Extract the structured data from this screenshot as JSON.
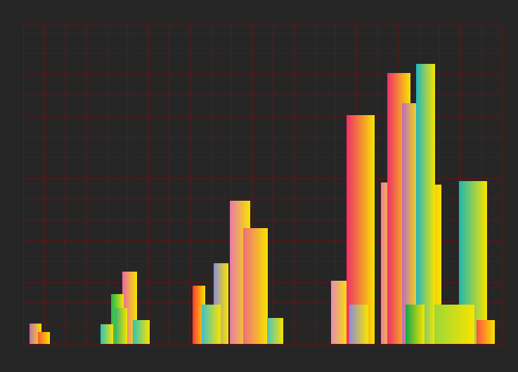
{
  "chart_data": {
    "type": "bar",
    "x": [
      0.57,
      0.98,
      5.1,
      4.5,
      4.7,
      4.0,
      5.65,
      10.4,
      11.15,
      9.5,
      8.45,
      9.0,
      12.1,
      15.2,
      16.2,
      19.6,
      17.5,
      18.05,
      18.6,
      19.3,
      21.6,
      16.1,
      18.8,
      20.7,
      22.2
    ],
    "values": [
      1.0,
      0.57,
      3.5,
      2.4,
      1.75,
      0.95,
      1.15,
      6.9,
      5.6,
      3.9,
      2.8,
      1.9,
      1.25,
      3.05,
      11.05,
      7.7,
      7.8,
      13.05,
      11.6,
      13.5,
      7.85,
      1.9,
      1.9,
      1.9,
      1.15
    ],
    "colors": [
      "#c86fb0",
      "#ff5a2a",
      "#e86aa6",
      "#1db954",
      "#2bb673",
      "#2ec4b6",
      "#2ec4b6",
      "#e87aa8",
      "#f06f7a",
      "#8f8fd6",
      "#ff3b2f",
      "#3fc1c9",
      "#49c5c0",
      "#e88ab5",
      "#f0306a",
      "#ff9a2a",
      "#f07aa0",
      "#f0306a",
      "#c06cc0",
      "#22b8c0",
      "#20b8b0",
      "#8f8fd6",
      "#12a84a",
      "#9ed838",
      "#ff5040"
    ],
    "xlim": [
      0,
      23
    ],
    "ylim": [
      0,
      15.4
    ],
    "xticks": [
      0,
      1,
      2,
      3,
      4,
      5,
      6,
      7,
      8,
      9,
      10,
      11,
      12,
      13,
      14,
      15,
      16,
      17,
      18,
      19,
      20,
      21,
      22,
      23
    ],
    "yticks": [
      0,
      1,
      2,
      3,
      4,
      5,
      6,
      7,
      8,
      9,
      10,
      11,
      12,
      13,
      14,
      15
    ],
    "grid": true,
    "tick_labels": false
  }
}
